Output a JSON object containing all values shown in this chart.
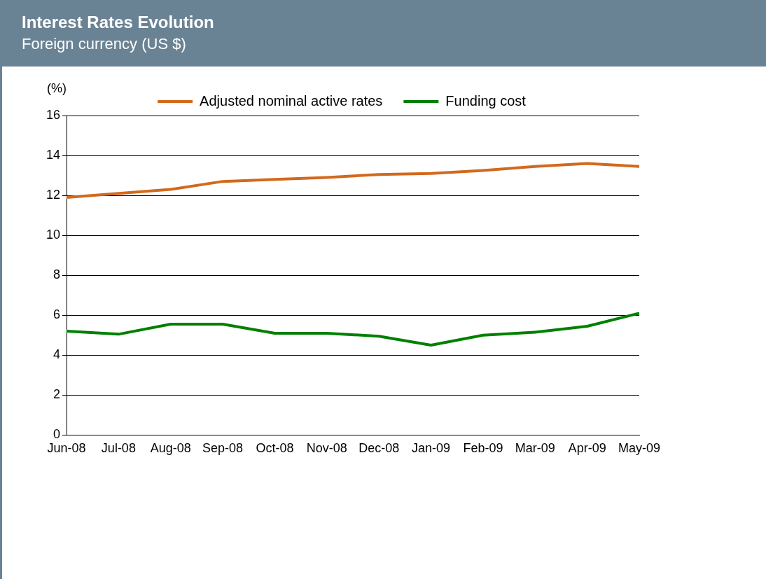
{
  "chart_data": {
    "type": "line",
    "title": "Interest Rates Evolution",
    "subtitle": "Foreign currency (US $)",
    "ylabel": "(%)",
    "categories": [
      "Jun-08",
      "Jul-08",
      "Aug-08",
      "Sep-08",
      "Oct-08",
      "Nov-08",
      "Dec-08",
      "Jan-09",
      "Feb-09",
      "Mar-09",
      "Apr-09",
      "May-09"
    ],
    "series": [
      {
        "name": "Adjusted nominal active rates",
        "color": "#d2691e",
        "values": [
          11.9,
          12.1,
          12.3,
          12.7,
          12.8,
          12.9,
          13.05,
          13.1,
          13.25,
          13.45,
          13.6,
          13.45
        ]
      },
      {
        "name": "Funding cost",
        "color": "#008000",
        "values": [
          5.2,
          5.05,
          5.55,
          5.55,
          5.1,
          5.1,
          4.95,
          4.5,
          5.0,
          5.15,
          5.45,
          6.1
        ]
      }
    ],
    "ylim": [
      0,
      16
    ],
    "yticks": [
      0,
      2,
      4,
      6,
      8,
      10,
      12,
      14,
      16
    ],
    "grid": "y",
    "legend": "top",
    "marker": "none",
    "line_style": "solid"
  }
}
